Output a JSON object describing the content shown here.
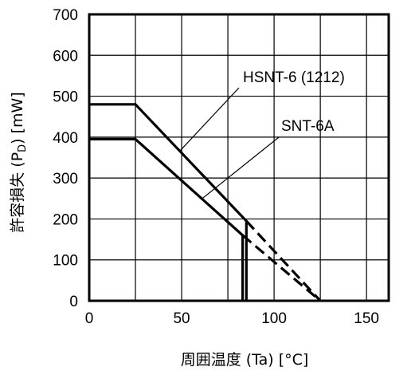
{
  "chart_data": {
    "type": "line",
    "xlabel": "周囲温度 (Ta) [°C]",
    "ylabel": "許容損失 (P",
    "ylabel_sub": "D",
    "ylabel_tail": ") [mW]",
    "xlim": [
      0,
      162
    ],
    "ylim": [
      0,
      700
    ],
    "xticks": [
      0,
      50,
      100,
      150
    ],
    "yticks": [
      0,
      100,
      200,
      300,
      400,
      500,
      600,
      700
    ],
    "xgrid": [
      0,
      25,
      50,
      75,
      100,
      125,
      150
    ],
    "ygrid": [
      100,
      200,
      300,
      400,
      500,
      600
    ],
    "grid": true,
    "series": [
      {
        "name": "HSNT-6 (1212)",
        "solid": [
          [
            0,
            480
          ],
          [
            25,
            480
          ],
          [
            85,
            195
          ],
          [
            85,
            0
          ]
        ],
        "dashed": [
          [
            85,
            195
          ],
          [
            125,
            0
          ]
        ]
      },
      {
        "name": "SNT-6A",
        "solid": [
          [
            0,
            395
          ],
          [
            25,
            395
          ],
          [
            83,
            160
          ],
          [
            83,
            0
          ]
        ],
        "dashed": [
          [
            83,
            160
          ],
          [
            125,
            0
          ]
        ]
      }
    ]
  }
}
